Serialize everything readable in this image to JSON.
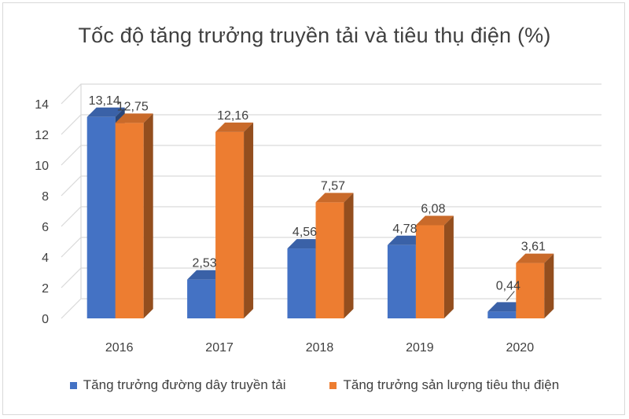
{
  "chart_data": {
    "type": "bar",
    "title": "Tốc độ tăng trưởng truyền tải và tiêu thụ điện (%)",
    "categories": [
      "2016",
      "2017",
      "2018",
      "2019",
      "2020"
    ],
    "series": [
      {
        "name": "Tăng trưởng đường dây truyền tải",
        "values": [
          13.14,
          2.53,
          4.56,
          4.78,
          0.44
        ],
        "labels": [
          "13,14",
          "2,53",
          "4,56",
          "4,78",
          "0,44"
        ],
        "color": "#4472C4"
      },
      {
        "name": "Tăng trưởng sản lượng tiêu thụ điện",
        "values": [
          12.75,
          12.16,
          7.57,
          6.08,
          3.61
        ],
        "labels": [
          "12,75",
          "12,16",
          "7,57",
          "6,08",
          "3,61"
        ],
        "color": "#ED7D31"
      }
    ],
    "ylim": [
      0,
      14
    ],
    "yticks": [
      0,
      2,
      4,
      6,
      8,
      10,
      12,
      14
    ],
    "style": "3d-clustered-column",
    "grid": true,
    "legend": "bottom"
  }
}
